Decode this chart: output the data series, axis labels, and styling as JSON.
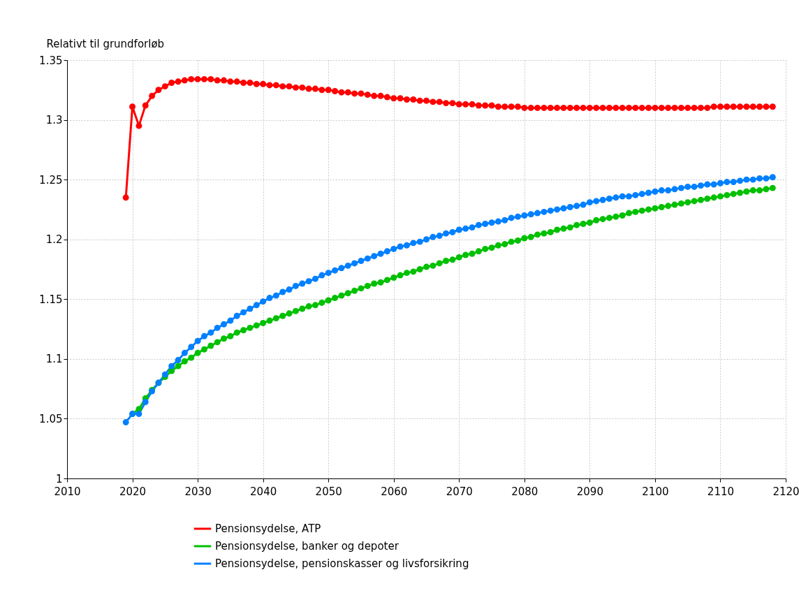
{
  "chart_data": {
    "type": "line",
    "ylabel": "Relativt til grundforløb",
    "x": [
      2019,
      2020,
      2021,
      2022,
      2023,
      2024,
      2025,
      2026,
      2027,
      2028,
      2029,
      2030,
      2031,
      2032,
      2033,
      2034,
      2035,
      2036,
      2037,
      2038,
      2039,
      2040,
      2041,
      2042,
      2043,
      2044,
      2045,
      2046,
      2047,
      2048,
      2049,
      2050,
      2051,
      2052,
      2053,
      2054,
      2055,
      2056,
      2057,
      2058,
      2059,
      2060,
      2061,
      2062,
      2063,
      2064,
      2065,
      2066,
      2067,
      2068,
      2069,
      2070,
      2071,
      2072,
      2073,
      2074,
      2075,
      2076,
      2077,
      2078,
      2079,
      2080,
      2081,
      2082,
      2083,
      2084,
      2085,
      2086,
      2087,
      2088,
      2089,
      2090,
      2091,
      2092,
      2093,
      2094,
      2095,
      2096,
      2097,
      2098,
      2099,
      2100,
      2101,
      2102,
      2103,
      2104,
      2105,
      2106,
      2107,
      2108,
      2109,
      2110,
      2111,
      2112,
      2113,
      2114,
      2115,
      2116,
      2117,
      2118
    ],
    "series": [
      {
        "name": "Pensionsydelse, ATP",
        "color": "#ff0000",
        "values": [
          1.235,
          1.311,
          1.295,
          1.312,
          1.32,
          1.325,
          1.328,
          1.331,
          1.332,
          1.333,
          1.334,
          1.334,
          1.334,
          1.334,
          1.333,
          1.333,
          1.332,
          1.332,
          1.331,
          1.331,
          1.33,
          1.33,
          1.329,
          1.329,
          1.328,
          1.328,
          1.327,
          1.327,
          1.326,
          1.326,
          1.325,
          1.325,
          1.324,
          1.323,
          1.323,
          1.322,
          1.322,
          1.321,
          1.32,
          1.32,
          1.319,
          1.318,
          1.318,
          1.317,
          1.317,
          1.316,
          1.316,
          1.315,
          1.315,
          1.314,
          1.314,
          1.313,
          1.313,
          1.313,
          1.312,
          1.312,
          1.312,
          1.311,
          1.311,
          1.311,
          1.311,
          1.31,
          1.31,
          1.31,
          1.31,
          1.31,
          1.31,
          1.31,
          1.31,
          1.31,
          1.31,
          1.31,
          1.31,
          1.31,
          1.31,
          1.31,
          1.31,
          1.31,
          1.31,
          1.31,
          1.31,
          1.31,
          1.31,
          1.31,
          1.31,
          1.31,
          1.31,
          1.31,
          1.31,
          1.31,
          1.311,
          1.311,
          1.311,
          1.311,
          1.311,
          1.311,
          1.311,
          1.311,
          1.311,
          1.311
        ]
      },
      {
        "name": "Pensionsydelse, banker og depoter",
        "color": "#00c000",
        "values": [
          null,
          1.054,
          1.058,
          1.067,
          1.074,
          1.08,
          1.085,
          1.09,
          1.094,
          1.098,
          1.101,
          1.105,
          1.108,
          1.111,
          1.114,
          1.117,
          1.119,
          1.122,
          1.124,
          1.126,
          1.128,
          1.13,
          1.132,
          1.134,
          1.136,
          1.138,
          1.14,
          1.142,
          1.144,
          1.145,
          1.147,
          1.149,
          1.151,
          1.153,
          1.155,
          1.157,
          1.159,
          1.161,
          1.163,
          1.164,
          1.166,
          1.168,
          1.17,
          1.172,
          1.173,
          1.175,
          1.177,
          1.178,
          1.18,
          1.182,
          1.183,
          1.185,
          1.187,
          1.188,
          1.19,
          1.192,
          1.193,
          1.195,
          1.196,
          1.198,
          1.199,
          1.201,
          1.202,
          1.204,
          1.205,
          1.206,
          1.208,
          1.209,
          1.21,
          1.212,
          1.213,
          1.214,
          1.216,
          1.217,
          1.218,
          1.219,
          1.22,
          1.222,
          1.223,
          1.224,
          1.225,
          1.226,
          1.227,
          1.228,
          1.229,
          1.23,
          1.231,
          1.232,
          1.233,
          1.234,
          1.235,
          1.236,
          1.237,
          1.238,
          1.239,
          1.24,
          1.241,
          1.241,
          1.242,
          1.243
        ]
      },
      {
        "name": " Pensionsydelse, pensionskasser og livsforsikring",
        "color": "#0080ff",
        "values": [
          1.047,
          1.054,
          1.054,
          1.064,
          1.073,
          1.08,
          1.087,
          1.094,
          1.099,
          1.105,
          1.11,
          1.115,
          1.119,
          1.122,
          1.126,
          1.129,
          1.132,
          1.136,
          1.139,
          1.142,
          1.145,
          1.148,
          1.151,
          1.153,
          1.156,
          1.158,
          1.161,
          1.163,
          1.165,
          1.167,
          1.17,
          1.172,
          1.174,
          1.176,
          1.178,
          1.18,
          1.182,
          1.184,
          1.186,
          1.188,
          1.19,
          1.192,
          1.194,
          1.195,
          1.197,
          1.198,
          1.2,
          1.202,
          1.203,
          1.205,
          1.206,
          1.208,
          1.209,
          1.21,
          1.212,
          1.213,
          1.214,
          1.215,
          1.216,
          1.218,
          1.219,
          1.22,
          1.221,
          1.222,
          1.223,
          1.224,
          1.225,
          1.226,
          1.227,
          1.228,
          1.229,
          1.231,
          1.232,
          1.233,
          1.234,
          1.235,
          1.236,
          1.236,
          1.237,
          1.238,
          1.239,
          1.24,
          1.241,
          1.241,
          1.242,
          1.243,
          1.244,
          1.244,
          1.245,
          1.246,
          1.246,
          1.247,
          1.248,
          1.248,
          1.249,
          1.25,
          1.25,
          1.251,
          1.251,
          1.252
        ]
      }
    ],
    "xlim": [
      2010,
      2120
    ],
    "xticks": [
      2010,
      2020,
      2030,
      2040,
      2050,
      2060,
      2070,
      2080,
      2090,
      2100,
      2110,
      2120
    ],
    "ylim": [
      1,
      1.35
    ],
    "yticks": [
      1,
      1.05,
      1.1,
      1.15,
      1.2,
      1.25,
      1.3,
      1.35
    ],
    "grid": true,
    "legend": "bottom",
    "marker": "circle",
    "line_style": "solid"
  }
}
